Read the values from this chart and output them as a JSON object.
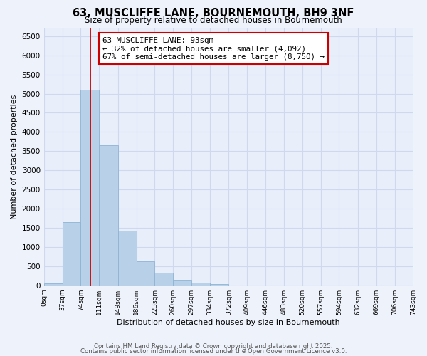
{
  "title": "63, MUSCLIFFE LANE, BOURNEMOUTH, BH9 3NF",
  "subtitle": "Size of property relative to detached houses in Bournemouth",
  "xlabel": "Distribution of detached houses by size in Bournemouth",
  "ylabel": "Number of detached properties",
  "bar_edges": [
    0,
    37,
    74,
    111,
    149,
    186,
    223,
    260,
    297,
    334,
    372,
    409,
    446,
    483,
    520,
    557,
    594,
    632,
    669,
    706,
    743
  ],
  "bar_heights": [
    50,
    1650,
    5100,
    3650,
    1430,
    620,
    320,
    150,
    70,
    30,
    0,
    0,
    0,
    0,
    0,
    0,
    0,
    0,
    0,
    0
  ],
  "bar_color": "#b8d0e8",
  "bar_edgecolor": "#8db4d4",
  "vline_x": 93,
  "vline_color": "#cc0000",
  "annotation_text_line1": "63 MUSCLIFFE LANE: 93sqm",
  "annotation_text_line2": "← 32% of detached houses are smaller (4,092)",
  "annotation_text_line3": "67% of semi-detached houses are larger (8,750) →",
  "annotation_box_color": "#cc0000",
  "ylim": [
    0,
    6700
  ],
  "yticks": [
    0,
    500,
    1000,
    1500,
    2000,
    2500,
    3000,
    3500,
    4000,
    4500,
    5000,
    5500,
    6000,
    6500
  ],
  "tick_labels": [
    "0sqm",
    "37sqm",
    "74sqm",
    "111sqm",
    "149sqm",
    "186sqm",
    "223sqm",
    "260sqm",
    "297sqm",
    "334sqm",
    "372sqm",
    "409sqm",
    "446sqm",
    "483sqm",
    "520sqm",
    "557sqm",
    "594sqm",
    "632sqm",
    "669sqm",
    "706sqm",
    "743sqm"
  ],
  "footer_line1": "Contains HM Land Registry data © Crown copyright and database right 2025.",
  "footer_line2": "Contains public sector information licensed under the Open Government Licence v3.0.",
  "bg_color": "#eef2fb",
  "grid_color": "#d0d8ee",
  "plot_bg_color": "#e8eefa"
}
